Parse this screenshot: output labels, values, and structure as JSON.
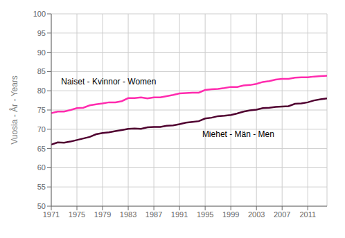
{
  "chart_data": {
    "type": "line",
    "ylabel": "Vuosia - År - Years",
    "x": [
      1971,
      1972,
      1973,
      1974,
      1975,
      1976,
      1977,
      1978,
      1979,
      1980,
      1981,
      1982,
      1983,
      1984,
      1985,
      1986,
      1987,
      1988,
      1989,
      1990,
      1991,
      1992,
      1993,
      1994,
      1995,
      1996,
      1997,
      1998,
      1999,
      2000,
      2001,
      2002,
      2003,
      2004,
      2005,
      2006,
      2007,
      2008,
      2009,
      2010,
      2011,
      2012,
      2013,
      2014
    ],
    "series": [
      {
        "name": "Naiset - Kvinnor - Women",
        "color": "#FF2BAE",
        "values": [
          74.2,
          74.6,
          74.6,
          75.0,
          75.5,
          75.6,
          76.2,
          76.5,
          76.7,
          77.0,
          77.0,
          77.3,
          78.1,
          78.1,
          78.3,
          78.0,
          78.3,
          78.3,
          78.6,
          78.9,
          79.3,
          79.4,
          79.5,
          79.5,
          80.2,
          80.4,
          80.5,
          80.7,
          81.0,
          81.0,
          81.4,
          81.5,
          81.8,
          82.3,
          82.5,
          82.9,
          83.1,
          83.1,
          83.4,
          83.5,
          83.5,
          83.7,
          83.8,
          83.9
        ]
      },
      {
        "name": "Miehet - Män - Men",
        "color": "#500030",
        "values": [
          66.0,
          66.6,
          66.5,
          66.8,
          67.2,
          67.6,
          68.0,
          68.7,
          69.0,
          69.2,
          69.5,
          69.8,
          70.1,
          70.2,
          70.1,
          70.5,
          70.6,
          70.6,
          70.9,
          71.0,
          71.3,
          71.7,
          71.9,
          72.1,
          72.8,
          73.0,
          73.4,
          73.5,
          73.7,
          74.1,
          74.6,
          74.9,
          75.1,
          75.5,
          75.6,
          75.8,
          75.9,
          76.0,
          76.6,
          76.7,
          77.0,
          77.5,
          77.8,
          78.0
        ]
      }
    ],
    "xlim": [
      1971,
      2014
    ],
    "xticks": [
      1971,
      1975,
      1979,
      1983,
      1987,
      1991,
      1995,
      1999,
      2003,
      2007,
      2011
    ],
    "ylim": [
      50,
      100
    ],
    "yticks": [
      50,
      55,
      60,
      65,
      70,
      75,
      80,
      85,
      90,
      95,
      100
    ],
    "grid": true,
    "annotations": [
      {
        "text": "Naiset - Kvinnor - Women",
        "x": 1972,
        "y": 82.5
      },
      {
        "text": "Miehet - Män - Men",
        "x": 1994,
        "y": 68.8
      }
    ]
  }
}
